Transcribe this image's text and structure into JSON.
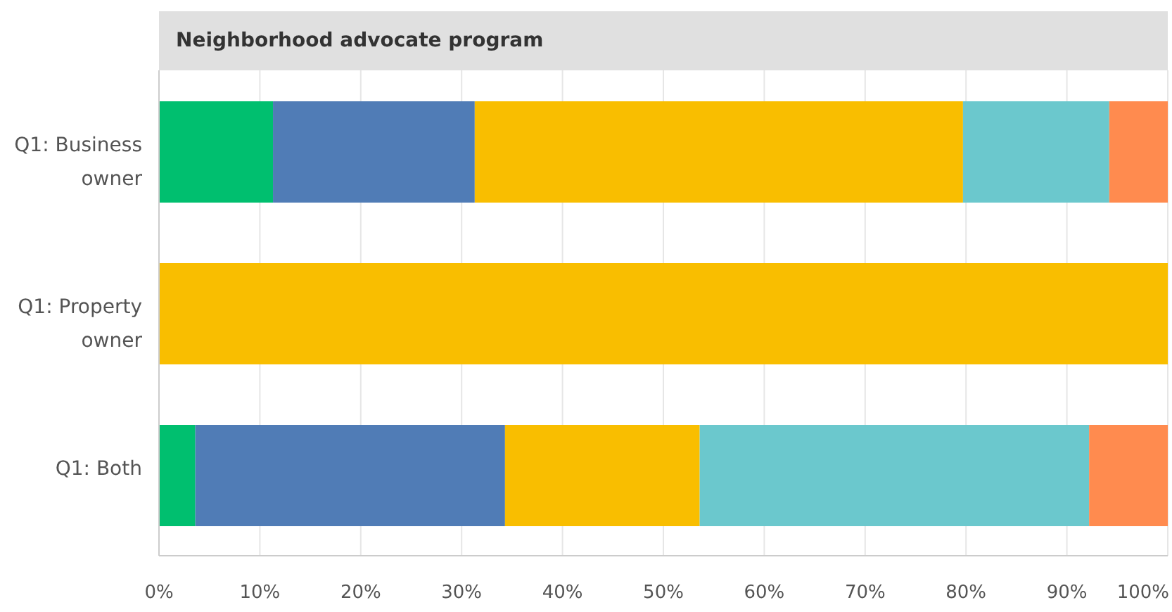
{
  "chart_data": {
    "type": "bar",
    "orientation": "horizontal",
    "stacked": true,
    "title": "Neighborhood advocate program",
    "categories": [
      "Q1: Business owner",
      "Q1: Property owner",
      "Q1: Both"
    ],
    "series": [
      {
        "color": "#00bf6f",
        "values": [
          11.3,
          0,
          3.6
        ]
      },
      {
        "color": "#507cb6",
        "values": [
          20,
          0,
          30.7
        ]
      },
      {
        "color": "#f9be00",
        "values": [
          48.4,
          100,
          19.3
        ]
      },
      {
        "color": "#6bc8cd",
        "values": [
          14.5,
          0,
          38.6
        ]
      },
      {
        "color": "#ff8b4f",
        "values": [
          5.8,
          0,
          7.8
        ]
      }
    ],
    "xlim": [
      0,
      100
    ],
    "xticks": [
      {
        "value": 0,
        "label": "0%"
      },
      {
        "value": 10,
        "label": "10%"
      },
      {
        "value": 20,
        "label": "20%"
      },
      {
        "value": 30,
        "label": "30%"
      },
      {
        "value": 40,
        "label": "40%"
      },
      {
        "value": 50,
        "label": "50%"
      },
      {
        "value": 60,
        "label": "60%"
      },
      {
        "value": 70,
        "label": "70%"
      },
      {
        "value": 80,
        "label": "80%"
      },
      {
        "value": 90,
        "label": "90%"
      },
      {
        "value": 100,
        "label": "100%"
      }
    ],
    "grid": "x"
  }
}
